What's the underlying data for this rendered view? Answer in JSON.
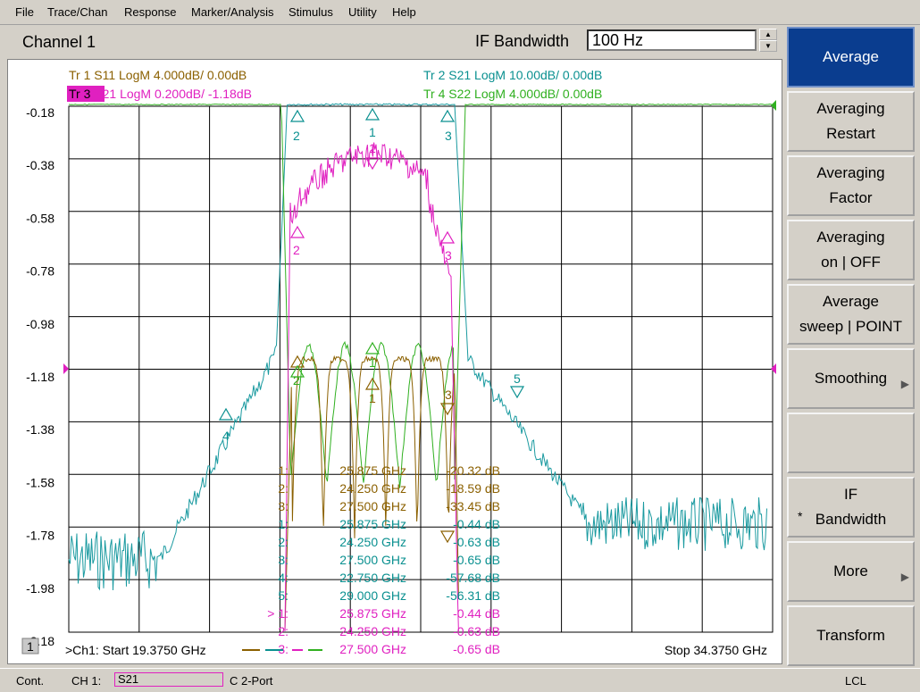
{
  "menu": [
    "File",
    "Trace/Chan",
    "Response",
    "Marker/Analysis",
    "Stimulus",
    "Utility",
    "Help"
  ],
  "channel_title": "Channel 1",
  "ifbw": {
    "label": "IF Bandwidth",
    "value": "100 Hz"
  },
  "softkeys": [
    {
      "lines": [
        "Average"
      ],
      "active": true
    },
    {
      "lines": [
        "Averaging",
        "Restart"
      ]
    },
    {
      "lines": [
        "Averaging",
        "Factor"
      ]
    },
    {
      "lines": [
        "Averaging",
        "on | OFF"
      ]
    },
    {
      "lines": [
        "Average",
        "sweep | POINT"
      ]
    },
    {
      "lines": [
        "Smoothing"
      ],
      "arrow": true
    },
    {
      "lines": [
        ""
      ]
    },
    {
      "lines": [
        "IF",
        "Bandwidth"
      ],
      "star": true
    },
    {
      "lines": [
        "More"
      ],
      "arrow": true
    },
    {
      "lines": [
        "Transform"
      ]
    }
  ],
  "traces": [
    {
      "label": "Tr  1  S11 LogM 4.000dB/  0.00dB",
      "color": "#8b6000"
    },
    {
      "label": "Tr  2  S21 LogM 10.00dB/  0.00dB",
      "color": "#0a9090"
    },
    {
      "label": "Tr  3  S21 LogM 0.200dB/  -1.18dB",
      "color": "#e020c0",
      "highlight": true
    },
    {
      "label": "Tr  4  S22 LogM 4.000dB/  0.00dB",
      "color": "#30b020"
    }
  ],
  "y_ticks": [
    "-0.18",
    "-0.38",
    "-0.58",
    "-0.78",
    "-0.98",
    "-1.18",
    "-1.38",
    "-1.58",
    "-1.78",
    "-1.98",
    "-2.18"
  ],
  "start_label": ">Ch1: Start  19.3750 GHz",
  "stop_label": "Stop  34.3750 GHz",
  "channel_number": "1",
  "marker_table": [
    {
      "n": "1:",
      "freq": "25.875 GHz",
      "val": "-20.32 dB",
      "color": "#8b6000"
    },
    {
      "n": "2:",
      "freq": "24.250 GHz",
      "val": "-18.59 dB",
      "color": "#8b6000"
    },
    {
      "n": "3:",
      "freq": "27.500 GHz",
      "val": "-33.45 dB",
      "color": "#8b6000"
    },
    {
      "n": "1:",
      "freq": "25.875 GHz",
      "val": "-0.44 dB",
      "color": "#0a9090"
    },
    {
      "n": "2:",
      "freq": "24.250 GHz",
      "val": "-0.63 dB",
      "color": "#0a9090"
    },
    {
      "n": "3:",
      "freq": "27.500 GHz",
      "val": "-0.65 dB",
      "color": "#0a9090"
    },
    {
      "n": "4:",
      "freq": "22.750 GHz",
      "val": "-57.68 dB",
      "color": "#0a9090"
    },
    {
      "n": "5:",
      "freq": "29.000 GHz",
      "val": "-56.31 dB",
      "color": "#0a9090"
    },
    {
      "n": "> 1:",
      "freq": "25.875 GHz",
      "val": "-0.44 dB",
      "color": "#e020c0"
    },
    {
      "n": "2:",
      "freq": "24.250 GHz",
      "val": "-0.63 dB",
      "color": "#e020c0"
    },
    {
      "n": "3:",
      "freq": "27.500 GHz",
      "val": "-0.65 dB",
      "color": "#e020c0"
    }
  ],
  "status": {
    "mode": "Cont.",
    "ch": "CH 1:",
    "param": "S21",
    "port": "C  2-Port",
    "lcl": "LCL"
  }
}
